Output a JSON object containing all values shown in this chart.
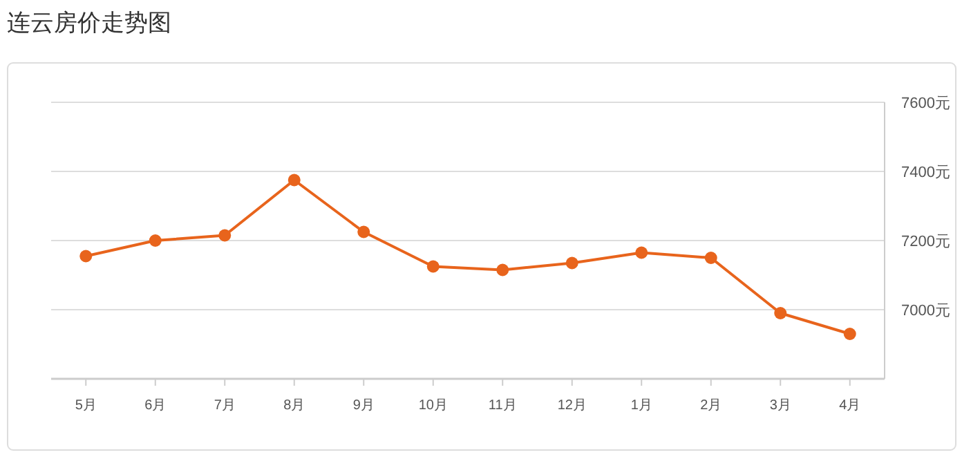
{
  "chart_data": {
    "type": "line",
    "title": "连云房价走势图",
    "categories": [
      "5月",
      "6月",
      "7月",
      "8月",
      "9月",
      "10月",
      "11月",
      "12月",
      "1月",
      "2月",
      "3月",
      "4月"
    ],
    "series": [
      {
        "color": "#e8641c",
        "values": [
          7155,
          7200,
          7215,
          7375,
          7225,
          7125,
          7115,
          7135,
          7165,
          7150,
          6990,
          6930
        ]
      }
    ],
    "ylim": [
      6800,
      7600
    ],
    "yticks": [
      {
        "value": 7000,
        "label": "7000元"
      },
      {
        "value": 7200,
        "label": "7200元"
      },
      {
        "value": 7400,
        "label": "7400元"
      },
      {
        "value": 7600,
        "label": "7600元"
      }
    ],
    "grid": "y",
    "marker": "circle",
    "line_style": "solid"
  }
}
